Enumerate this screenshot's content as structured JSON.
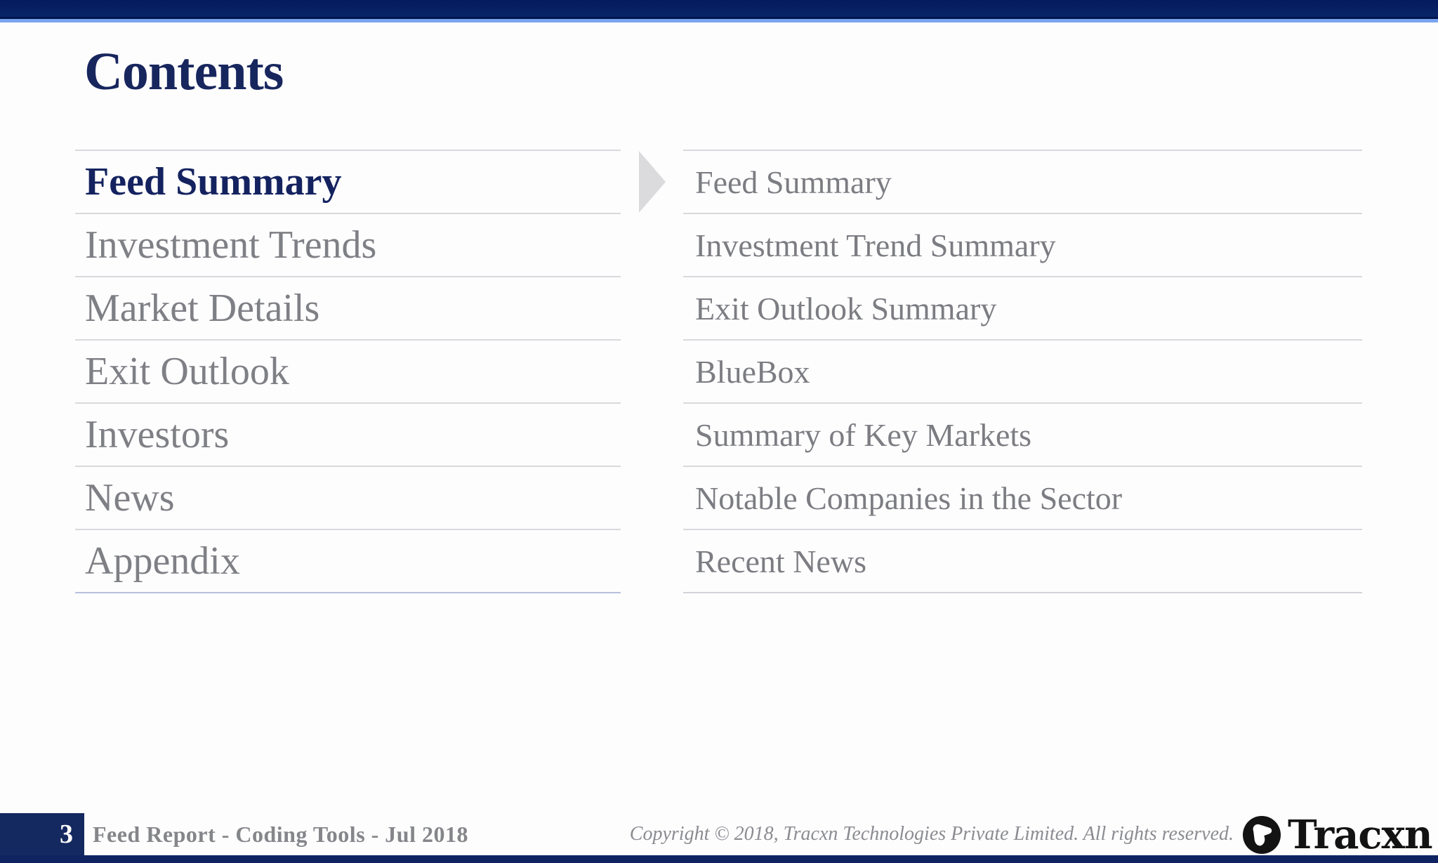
{
  "page": {
    "title": "Contents",
    "page_number": "3",
    "footer_title": "Feed Report - Coding Tools - Jul 2018",
    "copyright": "Copyright © 2018, Tracxn Technologies Private Limited. All rights reserved.",
    "brand_name": "Tracxn"
  },
  "toc": {
    "sections": [
      {
        "label": "Feed Summary",
        "active": true
      },
      {
        "label": "Investment Trends",
        "active": false
      },
      {
        "label": "Market Details",
        "active": false
      },
      {
        "label": "Exit Outlook",
        "active": false
      },
      {
        "label": "Investors",
        "active": false
      },
      {
        "label": "News",
        "active": false
      },
      {
        "label": "Appendix",
        "active": false
      }
    ],
    "subsections": [
      "Feed Summary",
      "Investment Trend Summary",
      "Exit Outlook Summary",
      "BlueBox",
      "Summary of Key Markets",
      "Notable Companies in the Sector",
      "Recent News"
    ]
  },
  "colors": {
    "top_bar_navy": "#07216a",
    "top_bar_accent_blue": "#7aa4ef",
    "title_navy": "#18265e",
    "active_item_navy": "#14235f",
    "item_gray": "#7f8085",
    "divider_gray": "#d9d9dd",
    "divider_blue": "#b7c0dd",
    "footer_box_navy": "#14295f",
    "bottom_bar_navy": "#0e2360"
  }
}
